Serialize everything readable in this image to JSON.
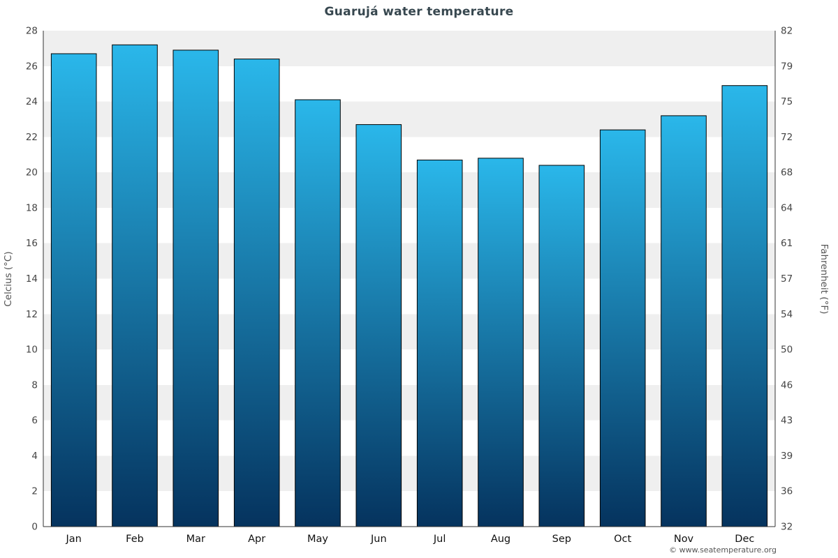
{
  "title": "Guarujá water temperature",
  "footer": {
    "copyright": "© www.seatemperature.org"
  },
  "chart_data": {
    "type": "bar",
    "categories": [
      "Jan",
      "Feb",
      "Mar",
      "Apr",
      "May",
      "Jun",
      "Jul",
      "Aug",
      "Sep",
      "Oct",
      "Nov",
      "Dec"
    ],
    "values": [
      26.7,
      27.2,
      26.9,
      26.4,
      24.1,
      22.7,
      20.7,
      20.8,
      20.4,
      22.4,
      23.2,
      24.9
    ],
    "title": "Guarujá water temperature",
    "xlabel": "",
    "ylabel_left": "Celcius (°C)",
    "ylabel_right": "Fahrenheit (°F)",
    "ylim": [
      0,
      28
    ],
    "ytick_step": 2,
    "yticks_celsius": [
      0,
      2,
      4,
      6,
      8,
      10,
      12,
      14,
      16,
      18,
      20,
      22,
      24,
      26,
      28
    ],
    "yticks_fahrenheit": [
      32,
      36,
      39,
      43,
      46,
      50,
      54,
      57,
      61,
      64,
      68,
      72,
      75,
      79,
      82
    ],
    "legend": "none",
    "grid": "banded",
    "colors": {
      "bar_gradient_top": "#2ab7ea",
      "bar_gradient_bottom": "#05335e",
      "bar_border": "#000000",
      "band": "#efefef",
      "band_alt": "#ffffff",
      "axis": "#333333",
      "title_text": "#37474f"
    }
  }
}
